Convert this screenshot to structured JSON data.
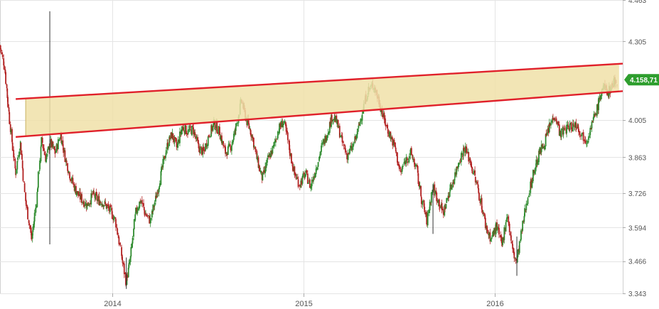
{
  "chart_data": {
    "type": "candlestick",
    "y_axis": {
      "position": "right",
      "ticks": [
        "4.463",
        "4.305",
        "4.158,71",
        "4.005",
        "3.863",
        "3.726",
        "3.594",
        "3.466",
        "3.343"
      ],
      "tick_values": [
        4463,
        4305,
        4005,
        3863,
        3726,
        3594,
        3466,
        3343
      ],
      "range": [
        3343,
        4463
      ]
    },
    "x_axis": {
      "ticks": [
        "2014",
        "2015",
        "2016"
      ],
      "tick_dates": [
        "2014-01-01",
        "2015-01-01",
        "2016-01-01"
      ],
      "range": [
        "2013-06-01",
        "2016-09-01"
      ]
    },
    "last_price": {
      "label": "4.158,71",
      "value": 4158.71
    },
    "grid": true,
    "colors": {
      "up": "#2e8b2e",
      "down": "#b22222",
      "channel_line": "#e0202a",
      "channel_fill": "#f0e0a8",
      "last_badge": "#2e9e2e",
      "grid": "#e4e4e4"
    },
    "series": {
      "path": [
        [
          "2013-06-01",
          4290
        ],
        [
          "2013-06-10",
          4210
        ],
        [
          "2013-06-20",
          4000
        ],
        [
          "2013-07-01",
          3800
        ],
        [
          "2013-07-10",
          3920
        ],
        [
          "2013-07-20",
          3700
        ],
        [
          "2013-08-01",
          3550
        ],
        [
          "2013-08-10",
          3700
        ],
        [
          "2013-08-20",
          3930
        ],
        [
          "2013-08-28",
          3850
        ],
        [
          "2013-09-05",
          3920
        ],
        [
          "2013-09-15",
          3880
        ],
        [
          "2013-09-25",
          3950
        ],
        [
          "2013-10-05",
          3850
        ],
        [
          "2013-10-15",
          3780
        ],
        [
          "2013-10-25",
          3730
        ],
        [
          "2013-11-05",
          3700
        ],
        [
          "2013-11-15",
          3680
        ],
        [
          "2013-11-25",
          3720
        ],
        [
          "2013-12-05",
          3700
        ],
        [
          "2013-12-15",
          3690
        ],
        [
          "2013-12-28",
          3660
        ],
        [
          "2014-01-08",
          3620
        ],
        [
          "2014-01-18",
          3500
        ],
        [
          "2014-01-28",
          3390
        ],
        [
          "2014-02-05",
          3470
        ],
        [
          "2014-02-15",
          3650
        ],
        [
          "2014-02-25",
          3700
        ],
        [
          "2014-03-05",
          3650
        ],
        [
          "2014-03-15",
          3620
        ],
        [
          "2014-03-25",
          3700
        ],
        [
          "2014-04-05",
          3800
        ],
        [
          "2014-04-15",
          3900
        ],
        [
          "2014-04-25",
          3950
        ],
        [
          "2014-05-05",
          3900
        ],
        [
          "2014-05-15",
          3980
        ],
        [
          "2014-05-25",
          3960
        ],
        [
          "2014-06-05",
          3970
        ],
        [
          "2014-06-15",
          3900
        ],
        [
          "2014-06-25",
          3880
        ],
        [
          "2014-07-05",
          3950
        ],
        [
          "2014-07-15",
          3990
        ],
        [
          "2014-07-25",
          3960
        ],
        [
          "2014-08-05",
          3880
        ],
        [
          "2014-08-15",
          3900
        ],
        [
          "2014-08-25",
          3970
        ],
        [
          "2014-09-05",
          4080
        ],
        [
          "2014-09-15",
          4000
        ],
        [
          "2014-09-25",
          3950
        ],
        [
          "2014-10-05",
          3850
        ],
        [
          "2014-10-15",
          3780
        ],
        [
          "2014-10-25",
          3850
        ],
        [
          "2014-11-05",
          3900
        ],
        [
          "2014-11-15",
          3970
        ],
        [
          "2014-11-25",
          4000
        ],
        [
          "2014-12-05",
          3900
        ],
        [
          "2014-12-15",
          3800
        ],
        [
          "2014-12-25",
          3760
        ],
        [
          "2015-01-05",
          3800
        ],
        [
          "2015-01-15",
          3750
        ],
        [
          "2015-01-25",
          3820
        ],
        [
          "2015-02-05",
          3900
        ],
        [
          "2015-02-15",
          3950
        ],
        [
          "2015-02-25",
          4020
        ],
        [
          "2015-03-05",
          4000
        ],
        [
          "2015-03-15",
          3930
        ],
        [
          "2015-03-25",
          3870
        ],
        [
          "2015-04-05",
          3900
        ],
        [
          "2015-04-15",
          3960
        ],
        [
          "2015-04-25",
          4050
        ],
        [
          "2015-05-05",
          4120
        ],
        [
          "2015-05-15",
          4140
        ],
        [
          "2015-05-25",
          4080
        ],
        [
          "2015-06-05",
          4000
        ],
        [
          "2015-06-15",
          3950
        ],
        [
          "2015-06-25",
          3900
        ],
        [
          "2015-07-05",
          3800
        ],
        [
          "2015-07-15",
          3850
        ],
        [
          "2015-07-25",
          3880
        ],
        [
          "2015-08-05",
          3820
        ],
        [
          "2015-08-15",
          3700
        ],
        [
          "2015-08-25",
          3620
        ],
        [
          "2015-09-05",
          3750
        ],
        [
          "2015-09-15",
          3700
        ],
        [
          "2015-09-25",
          3650
        ],
        [
          "2015-10-05",
          3720
        ],
        [
          "2015-10-15",
          3780
        ],
        [
          "2015-10-25",
          3850
        ],
        [
          "2015-11-05",
          3900
        ],
        [
          "2015-11-15",
          3850
        ],
        [
          "2015-11-25",
          3780
        ],
        [
          "2015-12-05",
          3700
        ],
        [
          "2015-12-15",
          3600
        ],
        [
          "2015-12-25",
          3550
        ],
        [
          "2016-01-05",
          3600
        ],
        [
          "2016-01-15",
          3520
        ],
        [
          "2016-01-25",
          3650
        ],
        [
          "2016-02-05",
          3500
        ],
        [
          "2016-02-12",
          3460
        ],
        [
          "2016-02-25",
          3620
        ],
        [
          "2016-03-05",
          3720
        ],
        [
          "2016-03-15",
          3800
        ],
        [
          "2016-03-25",
          3870
        ],
        [
          "2016-04-05",
          3920
        ],
        [
          "2016-04-15",
          3980
        ],
        [
          "2016-04-25",
          4030
        ],
        [
          "2016-05-05",
          3950
        ],
        [
          "2016-05-15",
          3970
        ],
        [
          "2016-05-25",
          3980
        ],
        [
          "2016-06-05",
          3990
        ],
        [
          "2016-06-15",
          3950
        ],
        [
          "2016-06-25",
          3930
        ],
        [
          "2016-07-05",
          3990
        ],
        [
          "2016-07-15",
          4050
        ],
        [
          "2016-07-25",
          4130
        ],
        [
          "2016-08-05",
          4110
        ],
        [
          "2016-08-15",
          4150
        ],
        [
          "2016-08-22",
          4158.71
        ]
      ],
      "spikes": [
        {
          "date": "2013-09-04",
          "high": 4420,
          "low": 3530
        },
        {
          "date": "2014-01-28",
          "high": 3480,
          "low": 3360
        },
        {
          "date": "2015-09-05",
          "high": 3760,
          "low": 3570
        },
        {
          "date": "2016-02-12",
          "high": 3560,
          "low": 3410
        }
      ]
    },
    "channel": {
      "upper": {
        "start": [
          "2013-07-01",
          4085
        ],
        "end": [
          "2016-09-01",
          4220
        ]
      },
      "lower": {
        "start": [
          "2013-07-01",
          3940
        ],
        "end": [
          "2016-09-01",
          4115
        ]
      },
      "fill_from": "2013-07-20",
      "fill_to": "2016-08-25"
    }
  }
}
